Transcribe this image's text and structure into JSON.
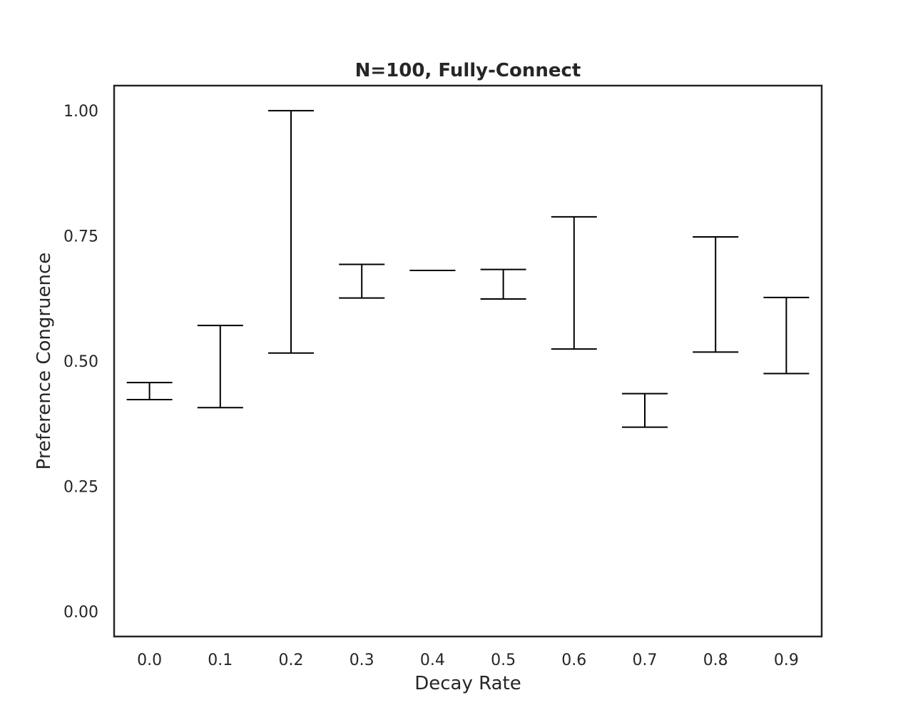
{
  "chart_data": {
    "type": "errorbar",
    "title": "N=100, Fully-Connect",
    "xlabel": "Decay Rate",
    "ylabel": "Preference Congruence",
    "categories": [
      "0.0",
      "0.1",
      "0.2",
      "0.3",
      "0.4",
      "0.5",
      "0.6",
      "0.7",
      "0.8",
      "0.9"
    ],
    "ylim": [
      -0.05,
      1.05
    ],
    "yticks": [
      0.0,
      0.25,
      0.5,
      0.75,
      1.0
    ],
    "ytick_labels": [
      "0.00",
      "0.25",
      "0.50",
      "0.75",
      "1.00"
    ],
    "intervals": [
      {
        "low": 0.423,
        "high": 0.457
      },
      {
        "low": 0.407,
        "high": 0.571
      },
      {
        "low": 0.516,
        "high": 1.0
      },
      {
        "low": 0.626,
        "high": 0.693
      },
      {
        "low": 0.681,
        "high": 0.681
      },
      {
        "low": 0.624,
        "high": 0.683
      },
      {
        "low": 0.524,
        "high": 0.788
      },
      {
        "low": 0.368,
        "high": 0.435
      },
      {
        "low": 0.518,
        "high": 0.748
      },
      {
        "low": 0.475,
        "high": 0.627
      }
    ],
    "grid": false,
    "legend": false,
    "line_color": "#000000"
  }
}
